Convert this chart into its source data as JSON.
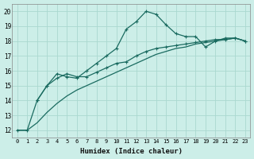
{
  "xlabel": "Humidex (Indice chaleur)",
  "bg_color": "#cceee8",
  "grid_color": "#aad8d0",
  "line_color": "#1a6b60",
  "xlim": [
    -0.5,
    23.5
  ],
  "ylim": [
    11.5,
    20.5
  ],
  "xticks": [
    0,
    1,
    2,
    3,
    4,
    5,
    6,
    7,
    8,
    9,
    10,
    11,
    12,
    13,
    14,
    15,
    16,
    17,
    18,
    19,
    20,
    21,
    22,
    23
  ],
  "yticks": [
    12,
    13,
    14,
    15,
    16,
    17,
    18,
    19,
    20
  ],
  "curve1_x": [
    0,
    1,
    2,
    3,
    4,
    5,
    6,
    7,
    8,
    9,
    10,
    11,
    12,
    13,
    14,
    15,
    16,
    17,
    18,
    19,
    20,
    21,
    22,
    23
  ],
  "curve1_y": [
    12.0,
    12.0,
    14.0,
    15.0,
    15.8,
    15.6,
    15.5,
    16.0,
    16.5,
    17.0,
    17.5,
    18.8,
    19.3,
    20.0,
    19.8,
    19.1,
    18.5,
    18.3,
    18.3,
    17.6,
    18.0,
    18.2,
    18.2,
    18.0
  ],
  "curve2_x": [
    2,
    3,
    4,
    5,
    6,
    7,
    8,
    9,
    10,
    11,
    12,
    13,
    14,
    15,
    16,
    17,
    18,
    19,
    20,
    21,
    22,
    23
  ],
  "curve2_y": [
    14.0,
    15.0,
    15.5,
    15.8,
    15.6,
    15.6,
    15.9,
    16.2,
    16.5,
    16.6,
    17.0,
    17.3,
    17.5,
    17.6,
    17.7,
    17.8,
    17.9,
    18.0,
    18.1,
    18.1,
    18.2,
    18.0
  ],
  "curve3_x": [
    0,
    1,
    2,
    3,
    4,
    5,
    6,
    7,
    8,
    9,
    10,
    11,
    12,
    13,
    14,
    15,
    16,
    17,
    18,
    19,
    20,
    21,
    22,
    23
  ],
  "curve3_y": [
    12.0,
    12.0,
    12.5,
    13.2,
    13.8,
    14.3,
    14.7,
    15.0,
    15.3,
    15.6,
    15.9,
    16.2,
    16.5,
    16.8,
    17.1,
    17.3,
    17.5,
    17.6,
    17.8,
    17.9,
    18.0,
    18.1,
    18.2,
    18.0
  ]
}
